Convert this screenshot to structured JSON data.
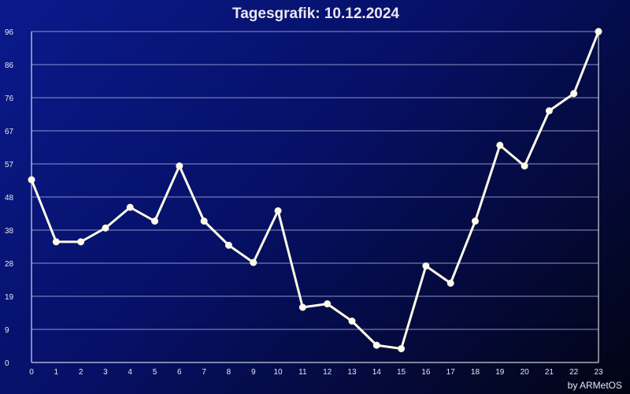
{
  "chart_data": {
    "type": "line",
    "title": "Tagesgrafik: 10.12.2024",
    "credit": "by ARMetOS",
    "x": [
      0,
      1,
      2,
      3,
      4,
      5,
      6,
      7,
      8,
      9,
      10,
      11,
      12,
      13,
      14,
      15,
      16,
      17,
      18,
      19,
      20,
      21,
      22,
      23
    ],
    "x_tick_labels": [
      "0",
      "1",
      "2",
      "3",
      "4",
      "5",
      "6",
      "7",
      "8",
      "9",
      "10",
      "11",
      "12",
      "13",
      "14",
      "15",
      "16",
      "17",
      "18",
      "19",
      "20",
      "21",
      "22",
      "23"
    ],
    "y_tick_labels": [
      "0",
      "9",
      "19",
      "28",
      "38",
      "48",
      "57",
      "67",
      "76",
      "86",
      "96"
    ],
    "ylim": [
      0,
      96
    ],
    "grid": true,
    "series": [
      {
        "values": [
          53,
          35,
          35,
          39,
          45,
          41,
          57,
          41,
          34,
          29,
          44,
          16,
          17,
          12,
          5,
          4,
          28,
          23,
          41,
          63,
          57,
          73,
          78,
          96
        ]
      }
    ],
    "colors": {
      "line": "#fffbe8",
      "grid": "#8c93c8",
      "axis": "#ffffff",
      "text": "#e8e8f0"
    }
  }
}
